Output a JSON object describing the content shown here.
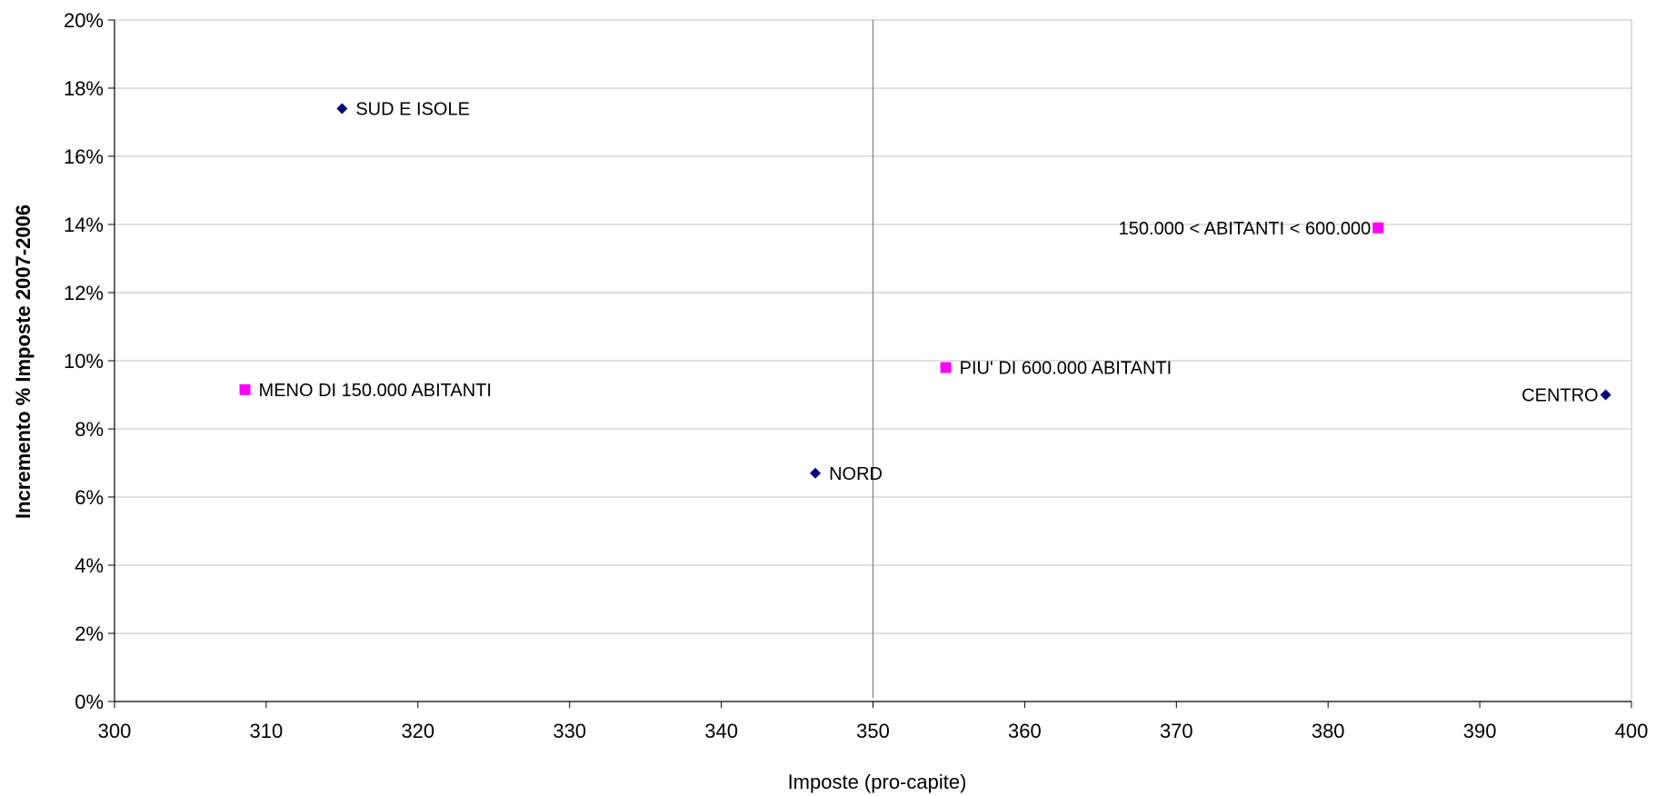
{
  "chart_data": {
    "type": "scatter",
    "title": "",
    "xlabel": "Imposte (pro-capite)",
    "ylabel": "Incremento % Imposte 2007-2006",
    "xlim": [
      300,
      400
    ],
    "ylim": [
      0,
      0.2
    ],
    "x_ticks": [
      "300",
      "310",
      "320",
      "330",
      "340",
      "350",
      "360",
      "370",
      "380",
      "390",
      "400"
    ],
    "y_ticks": [
      "0%",
      "2%",
      "4%",
      "6%",
      "8%",
      "10%",
      "12%",
      "14%",
      "16%",
      "18%",
      "20%"
    ],
    "grid": "horizontal",
    "reference_line_x": 350,
    "colors": {
      "diamond": "#000080",
      "square": "#ff00ff",
      "grid": "#c0c0c0",
      "axis": "#000000",
      "refline": "#808080"
    },
    "points": [
      {
        "label": "SUD E ISOLE",
        "x": 315.0,
        "y": 0.174,
        "marker": "diamond",
        "label_pos": "right"
      },
      {
        "label": "MENO DI 150.000 ABITANTI",
        "x": 308.6,
        "y": 0.0915,
        "marker": "square",
        "label_pos": "right"
      },
      {
        "label": "NORD",
        "x": 346.2,
        "y": 0.067,
        "marker": "diamond",
        "label_pos": "right"
      },
      {
        "label": "PIU' DI  600.000 ABITANTI",
        "x": 354.8,
        "y": 0.098,
        "marker": "square",
        "label_pos": "right"
      },
      {
        "label": "150.000 < ABITANTI < 600.000",
        "x": 383.3,
        "y": 0.139,
        "marker": "square",
        "label_pos": "left"
      },
      {
        "label": "CENTRO",
        "x": 398.3,
        "y": 0.09,
        "marker": "diamond",
        "label_pos": "left"
      }
    ]
  }
}
